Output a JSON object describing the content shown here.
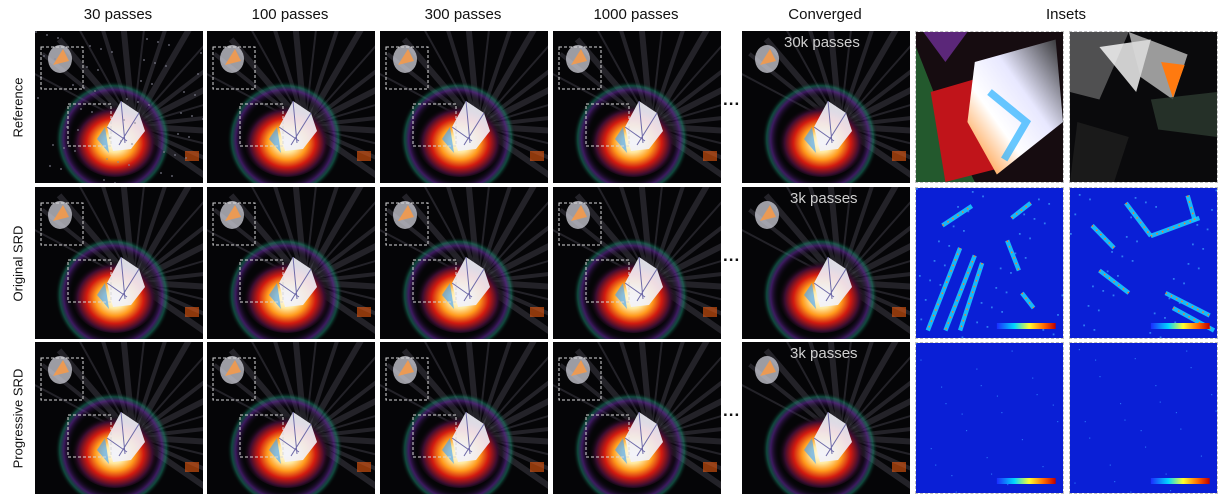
{
  "columns": [
    "30 passes",
    "100 passes",
    "300 passes",
    "1000 passes",
    "Converged",
    "Insets"
  ],
  "rows": [
    {
      "label": "Reference",
      "converged_passes": "30k passes",
      "inset_kind": "render"
    },
    {
      "label": "Original SRD",
      "converged_passes": "3k passes",
      "inset_kind": "error-high"
    },
    {
      "label": "Progressive SRD",
      "converged_passes": "3k passes",
      "inset_kind": "error-low"
    }
  ],
  "ellipsis": "...",
  "colors": {
    "background": "#050507",
    "error_map_base": "#0a1fd6",
    "inset_border": "#bdbdbd",
    "crop_box": "#d8d8d8"
  }
}
